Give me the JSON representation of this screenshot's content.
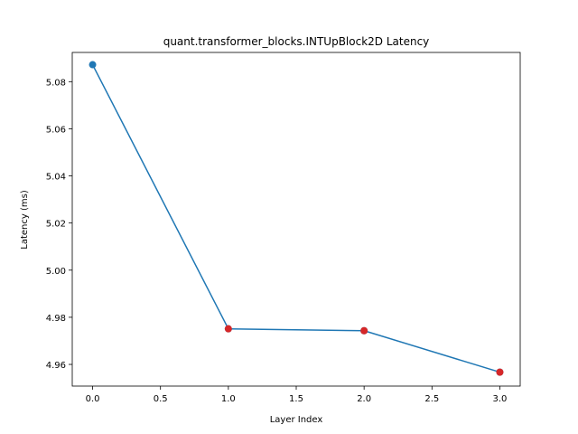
{
  "chart_data": {
    "type": "line",
    "title": "quant.transformer_blocks.INTUpBlock2D Latency",
    "xlabel": "Layer Index",
    "ylabel": "Latency (ms)",
    "xlim": [
      -0.15,
      3.15
    ],
    "ylim": [
      4.9508,
      5.0924
    ],
    "x_ticks": [
      0.0,
      0.5,
      1.0,
      1.5,
      2.0,
      2.5,
      3.0
    ],
    "x_tick_labels": [
      "0.0",
      "0.5",
      "1.0",
      "1.5",
      "2.0",
      "2.5",
      "3.0"
    ],
    "y_ticks": [
      4.96,
      4.98,
      5.0,
      5.02,
      5.04,
      5.06,
      5.08
    ],
    "y_tick_labels": [
      "4.96",
      "4.98",
      "5.00",
      "5.02",
      "5.04",
      "5.06",
      "5.08"
    ],
    "grid": false,
    "series": [
      {
        "x": [
          0,
          1,
          2,
          3
        ],
        "y": [
          5.0872,
          4.9751,
          4.9743,
          4.9567
        ],
        "color": "#1f77b4",
        "marker": "circle"
      }
    ],
    "highlighted_points": {
      "x": [
        1,
        2,
        3
      ],
      "y": [
        4.9751,
        4.9743,
        4.9567
      ],
      "color": "#d62728"
    }
  }
}
